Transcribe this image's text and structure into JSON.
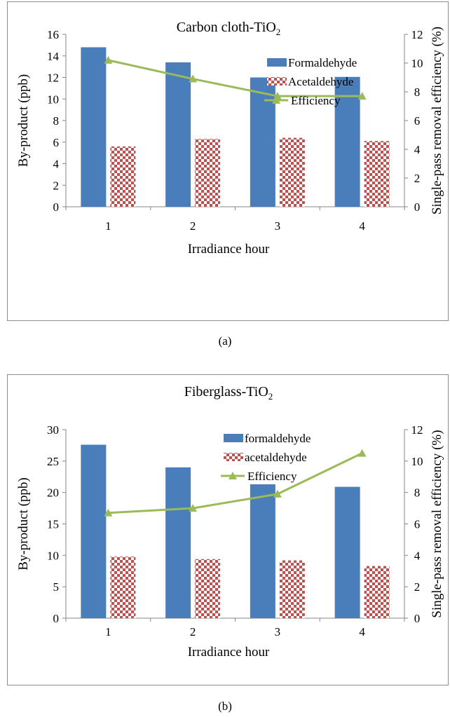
{
  "chart_data": [
    {
      "type": "bar",
      "title": "Carbon cloth-TiO",
      "title_subscript": "2",
      "xlabel": "Irradiance hour",
      "ylabel": "By-product (ppb)",
      "y2label": "Single-pass removal efficiency (%)",
      "categories": [
        "1",
        "2",
        "3",
        "4"
      ],
      "ylim": [
        0,
        16
      ],
      "yticks": [
        0,
        2,
        4,
        6,
        8,
        10,
        12,
        14,
        16
      ],
      "y2lim": [
        0,
        12
      ],
      "y2ticks": [
        0,
        2,
        4,
        6,
        8,
        10,
        12
      ],
      "series": [
        {
          "name": "Formaldehyde",
          "kind": "bar",
          "axis": "left",
          "style": "solid",
          "color": "#4a7ebb",
          "values": [
            14.8,
            13.4,
            12.0,
            12.05
          ]
        },
        {
          "name": "Acetaldehyde",
          "kind": "bar",
          "axis": "left",
          "style": "checker",
          "color": "#c0504d",
          "values": [
            5.6,
            6.3,
            6.4,
            6.1
          ]
        },
        {
          "name": "Efficiency",
          "kind": "line",
          "axis": "right",
          "color": "#9bbb59",
          "values": [
            10.2,
            8.9,
            7.7,
            7.7
          ]
        }
      ],
      "legend": "top-right"
    },
    {
      "type": "bar",
      "title": "Fiberglass-TiO",
      "title_subscript": "2",
      "xlabel": "Irradiance hour",
      "ylabel": "By-product (ppb)",
      "y2label": "Single-pass removal efficiency (%)",
      "categories": [
        "1",
        "2",
        "3",
        "4"
      ],
      "ylim": [
        0,
        30
      ],
      "yticks": [
        0,
        5,
        10,
        15,
        20,
        25,
        30
      ],
      "y2lim": [
        0,
        12
      ],
      "y2ticks": [
        0,
        2,
        4,
        6,
        8,
        10,
        12
      ],
      "series": [
        {
          "name": "formaldehyde",
          "kind": "bar",
          "axis": "left",
          "style": "solid",
          "color": "#4a7ebb",
          "values": [
            27.6,
            24.0,
            21.3,
            20.9
          ]
        },
        {
          "name": "acetaldehyde",
          "kind": "bar",
          "axis": "left",
          "style": "checker",
          "color": "#c0504d",
          "values": [
            9.8,
            9.4,
            9.2,
            8.3
          ]
        },
        {
          "name": "Efficiency",
          "kind": "line",
          "axis": "right",
          "color": "#9bbb59",
          "values": [
            6.7,
            7.0,
            7.9,
            10.5
          ]
        }
      ],
      "legend": "top-right"
    }
  ],
  "captions": {
    "a": "(a)",
    "b": "(b)"
  }
}
